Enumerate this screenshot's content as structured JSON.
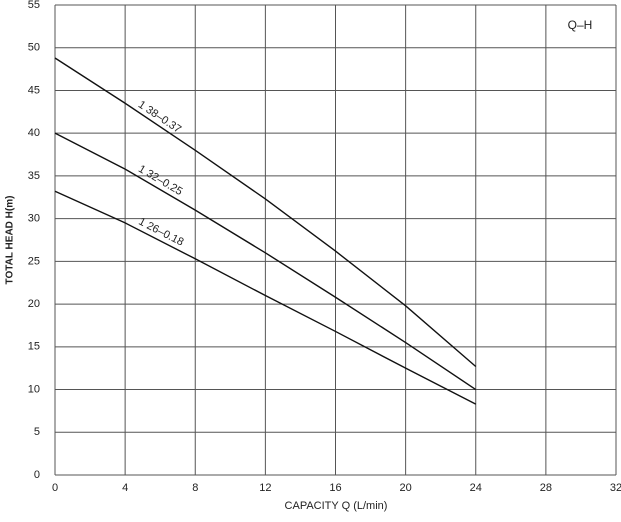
{
  "chart_data": {
    "type": "line",
    "corner_label": "Q–H",
    "xlabel": "CAPACITY  Q (L/min)",
    "ylabel": "TOTAL HEAD  H(m)",
    "x": [
      0,
      4,
      8,
      12,
      16,
      20,
      24
    ],
    "series": [
      {
        "name": "1 38–0.37",
        "color": "#111111",
        "values": [
          48.8,
          43.5,
          38,
          32.3,
          26.2,
          19.8,
          12.7
        ]
      },
      {
        "name": "1 32–0.25",
        "color": "#111111",
        "values": [
          40,
          35.8,
          31,
          26,
          20.8,
          15.5,
          10
        ]
      },
      {
        "name": "1 26–0.18",
        "color": "#111111",
        "values": [
          33.2,
          29.5,
          25.3,
          21,
          16.8,
          12.5,
          8.3
        ]
      }
    ],
    "xlim": [
      0,
      32
    ],
    "xticks": [
      0,
      4,
      8,
      12,
      16,
      20,
      24,
      28,
      32
    ],
    "ylim": [
      0,
      55
    ],
    "yticks": [
      0,
      5,
      10,
      15,
      20,
      25,
      30,
      35,
      40,
      45,
      50,
      55
    ],
    "grid": true
  }
}
